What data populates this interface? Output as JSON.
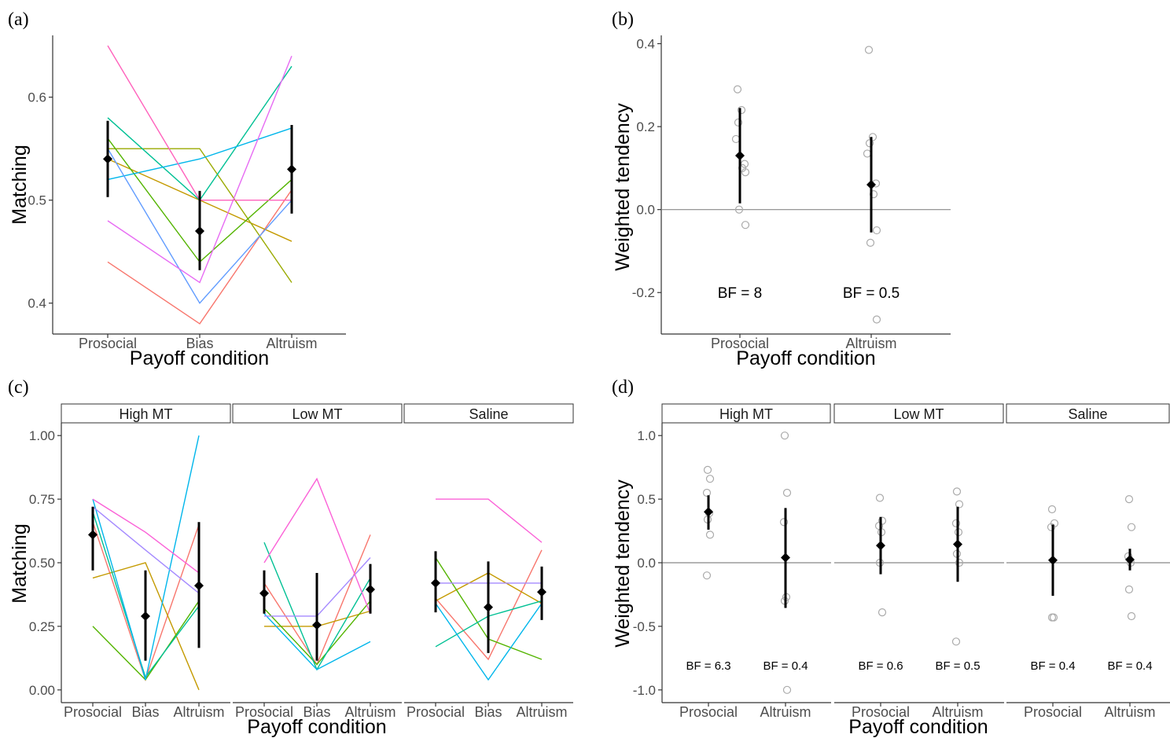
{
  "figure": {
    "colors": {
      "mean_marker": "#000000",
      "point_outline": "#aaaaaa",
      "axis": "#333333",
      "strip_border": "#333333",
      "subject_palette": [
        "#F8766D",
        "#C49A00",
        "#53B400",
        "#00C094",
        "#00B6EB",
        "#A58AFF",
        "#FB61D7",
        "#619CFF"
      ]
    },
    "chart_data": [
      {
        "id": "a",
        "panel_label": "(a)",
        "type": "line",
        "xlabel": "Payoff condition",
        "ylabel": "Matching",
        "categories": [
          "Prosocial",
          "Bias",
          "Altruism"
        ],
        "ylim": [
          0.37,
          0.66
        ],
        "yticks": [
          "0.4",
          "0.5",
          "0.6"
        ],
        "grid": false,
        "subjects": [
          {
            "color": "#F8766D",
            "values": [
              0.44,
              0.38,
              0.51
            ]
          },
          {
            "color": "#C49A00",
            "values": [
              0.54,
              0.5,
              0.46
            ]
          },
          {
            "color": "#9aaa00",
            "values": [
              0.55,
              0.55,
              0.42
            ]
          },
          {
            "color": "#53B400",
            "values": [
              0.56,
              0.44,
              0.52
            ]
          },
          {
            "color": "#00C094",
            "values": [
              0.58,
              0.5,
              0.63
            ]
          },
          {
            "color": "#00B6EB",
            "values": [
              0.52,
              0.54,
              0.57
            ]
          },
          {
            "color": "#619CFF",
            "values": [
              0.55,
              0.4,
              0.5
            ]
          },
          {
            "color": "#E76BF3",
            "values": [
              0.48,
              0.42,
              0.64
            ]
          },
          {
            "color": "#FF62BC",
            "values": [
              0.65,
              0.5,
              0.5
            ]
          }
        ],
        "means": [
          0.54,
          0.47,
          0.53
        ],
        "ci_low": [
          0.503,
          0.432,
          0.487
        ],
        "ci_high": [
          0.577,
          0.509,
          0.573
        ]
      },
      {
        "id": "b",
        "panel_label": "(b)",
        "type": "scatter",
        "xlabel": "Payoff condition",
        "ylabel": "Weighted tendency",
        "categories": [
          "Prosocial",
          "Altruism"
        ],
        "ylim": [
          -0.3,
          0.42
        ],
        "yticks": [
          "-0.2",
          "0.0",
          "0.2",
          "0.4"
        ],
        "ytick_values": [
          -0.2,
          0.0,
          0.2,
          0.4
        ],
        "hline": 0.0,
        "grid": false,
        "points": [
          [
            0.29,
            0.24,
            0.21,
            0.17,
            0.11,
            0.1,
            0.09,
            0.0,
            -0.037
          ],
          [
            0.385,
            0.175,
            0.16,
            0.135,
            0.063,
            0.037,
            -0.05,
            -0.08,
            -0.265
          ]
        ],
        "means": [
          0.13,
          0.06
        ],
        "ci_low": [
          0.015,
          -0.055
        ],
        "ci_high": [
          0.245,
          0.175
        ],
        "annotations": [
          "BF = 8",
          "BF = 0.5"
        ]
      },
      {
        "id": "c",
        "panel_label": "(c)",
        "type": "line",
        "xlabel": "Payoff condition",
        "ylabel": "Matching",
        "categories": [
          "Prosocial",
          "Bias",
          "Altruism"
        ],
        "ylim": [
          -0.05,
          1.05
        ],
        "yticks": [
          "0.00",
          "0.25",
          "0.50",
          "0.75",
          "1.00"
        ],
        "ytick_values": [
          0,
          0.25,
          0.5,
          0.75,
          1.0
        ],
        "facets": [
          {
            "strip": "High MT",
            "subjects": [
              {
                "color": "#F8766D",
                "values": [
                  0.66,
                  0.04,
                  0.65
                ]
              },
              {
                "color": "#C49A00",
                "values": [
                  0.44,
                  0.5,
                  0.0
                ]
              },
              {
                "color": "#53B400",
                "values": [
                  0.25,
                  0.04,
                  0.35
                ]
              },
              {
                "color": "#00C094",
                "values": [
                  0.7,
                  0.05,
                  0.33
                ]
              },
              {
                "color": "#00B6EB",
                "values": [
                  0.75,
                  0.04,
                  1.0
                ]
              },
              {
                "color": "#A58AFF",
                "values": [
                  0.72,
                  0.55,
                  0.38
                ]
              },
              {
                "color": "#FB61D7",
                "values": [
                  0.75,
                  0.62,
                  0.46
                ]
              }
            ],
            "means": [
              0.61,
              0.29,
              0.41
            ],
            "ci_low": [
              0.47,
              0.115,
              0.165
            ],
            "ci_high": [
              0.72,
              0.47,
              0.66
            ]
          },
          {
            "strip": "Low MT",
            "subjects": [
              {
                "color": "#F8766D",
                "values": [
                  0.42,
                  0.1,
                  0.61
                ]
              },
              {
                "color": "#C49A00",
                "values": [
                  0.25,
                  0.25,
                  0.31
                ]
              },
              {
                "color": "#53B400",
                "values": [
                  0.32,
                  0.1,
                  0.35
                ]
              },
              {
                "color": "#00C094",
                "values": [
                  0.58,
                  0.08,
                  0.44
                ]
              },
              {
                "color": "#00B6EB",
                "values": [
                  0.3,
                  0.08,
                  0.19
                ]
              },
              {
                "color": "#A58AFF",
                "values": [
                  0.29,
                  0.29,
                  0.52
                ]
              },
              {
                "color": "#FB61D7",
                "values": [
                  0.5,
                  0.83,
                  0.3
                ]
              }
            ],
            "means": [
              0.38,
              0.255,
              0.395
            ],
            "ci_low": [
              0.3,
              0.115,
              0.3
            ],
            "ci_high": [
              0.47,
              0.46,
              0.495
            ]
          },
          {
            "strip": "Saline",
            "subjects": [
              {
                "color": "#F8766D",
                "values": [
                  0.36,
                  0.12,
                  0.55
                ]
              },
              {
                "color": "#C49A00",
                "values": [
                  0.35,
                  0.46,
                  0.34
                ]
              },
              {
                "color": "#53B400",
                "values": [
                  0.52,
                  0.2,
                  0.12
                ]
              },
              {
                "color": "#00C094",
                "values": [
                  0.17,
                  0.29,
                  0.35
                ]
              },
              {
                "color": "#00B6EB",
                "values": [
                  0.34,
                  0.04,
                  0.34
                ]
              },
              {
                "color": "#A58AFF",
                "values": [
                  0.42,
                  0.42,
                  0.42
                ]
              },
              {
                "color": "#FB61D7",
                "values": [
                  0.75,
                  0.75,
                  0.58
                ]
              }
            ],
            "means": [
              0.42,
              0.325,
              0.385
            ],
            "ci_low": [
              0.305,
              0.145,
              0.275
            ],
            "ci_high": [
              0.545,
              0.505,
              0.485
            ]
          }
        ]
      },
      {
        "id": "d",
        "panel_label": "(d)",
        "type": "scatter",
        "xlabel": "Payoff condition",
        "ylabel": "Weighted tendency",
        "categories": [
          "Prosocial",
          "Altruism"
        ],
        "ylim": [
          -1.1,
          1.1
        ],
        "yticks": [
          "-1.0",
          "-0.5",
          "0.0",
          "0.5",
          "1.0"
        ],
        "ytick_values": [
          -1.0,
          -0.5,
          0.0,
          0.5,
          1.0
        ],
        "hline": 0.0,
        "facets": [
          {
            "strip": "High MT",
            "points": [
              [
                0.73,
                0.66,
                0.55,
                0.39,
                0.34,
                0.22,
                -0.1
              ],
              [
                1.0,
                0.55,
                0.32,
                -0.27,
                -0.3,
                -1.0
              ]
            ],
            "means": [
              0.4,
              0.04
            ],
            "ci_low": [
              0.26,
              -0.355
            ],
            "ci_high": [
              0.53,
              0.43
            ],
            "annotations": [
              "BF = 6.3",
              "BF = 0.4"
            ]
          },
          {
            "strip": "Low MT",
            "points": [
              [
                0.51,
                0.33,
                0.29,
                0.24,
                0.0,
                -0.39
              ],
              [
                0.56,
                0.46,
                0.31,
                0.24,
                0.07,
                0.0,
                -0.62
              ]
            ],
            "means": [
              0.135,
              0.145
            ],
            "ci_low": [
              -0.09,
              -0.15
            ],
            "ci_high": [
              0.36,
              0.44
            ]
          },
          {
            "strip": "Saline",
            "points": [
              [
                0.42,
                0.31,
                0.28,
                -0.43,
                -0.43
              ],
              [
                0.5,
                0.28,
                0.05,
                0.0,
                -0.21,
                -0.42
              ]
            ],
            "means": [
              0.02,
              0.025
            ],
            "ci_low": [
              -0.26,
              -0.06
            ],
            "ci_high": [
              0.3,
              0.11
            ]
          }
        ],
        "annotations_per_facet": [
          [
            "BF = 6.3",
            "BF = 0.4"
          ],
          [
            "BF = 0.6",
            "BF = 0.5"
          ],
          [
            "BF = 0.4",
            "BF = 0.4"
          ]
        ]
      }
    ]
  }
}
